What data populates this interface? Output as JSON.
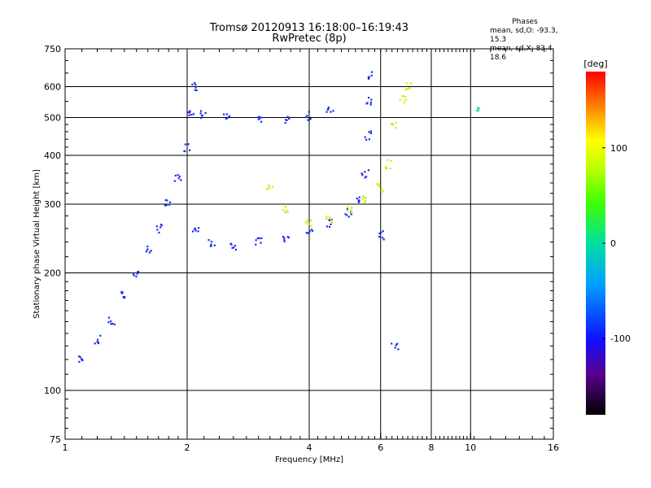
{
  "chart_data": {
    "type": "scatter",
    "title_line1": "Tromsø 20120913 16:18:00–16:19:43",
    "title_line2": "RwPretec (8p)",
    "xlabel": "Frequency [MHz]",
    "ylabel": "Stationary phase Virtual Height [km]",
    "x_scale": "log",
    "y_scale": "log",
    "xlim": [
      1,
      16
    ],
    "ylim": [
      75,
      750
    ],
    "x_ticks": [
      1,
      2,
      4,
      6,
      8,
      10,
      16
    ],
    "y_ticks": [
      75,
      100,
      200,
      300,
      400,
      500,
      600,
      750
    ],
    "x_gridlines": [
      2,
      4,
      6,
      8,
      10
    ],
    "y_gridlines": [
      100,
      200,
      300,
      400,
      500,
      600
    ],
    "grid": true,
    "colorbar": {
      "label": "[deg]",
      "range": [
        -180,
        180
      ],
      "ticks": [
        100,
        0,
        -100
      ]
    },
    "phase_stats": {
      "heading": "Phases",
      "line_o": "mean, sd,O: -93.3, 15.3",
      "line_x": "mean, sd,X: 83.4, 18.6"
    },
    "series": [
      {
        "name": "",
        "trace_description": "approximate trace points (frequency MHz, virtual height km, phase deg)",
        "points": [
          [
            1.1,
            120,
            -100
          ],
          [
            1.2,
            135,
            -100
          ],
          [
            1.3,
            150,
            -100
          ],
          [
            1.4,
            175,
            -100
          ],
          [
            1.5,
            200,
            -100
          ],
          [
            1.6,
            230,
            -100
          ],
          [
            1.7,
            260,
            -100
          ],
          [
            1.8,
            300,
            -100
          ],
          [
            1.9,
            350,
            -100
          ],
          [
            2.0,
            420,
            -100
          ],
          [
            2.05,
            520,
            -100
          ],
          [
            2.1,
            600,
            -100
          ],
          [
            2.2,
            510,
            -100
          ],
          [
            2.5,
            500,
            -100
          ],
          [
            3.0,
            490,
            -100
          ],
          [
            3.5,
            495,
            -100
          ],
          [
            4.0,
            505,
            -100
          ],
          [
            4.5,
            520,
            -100
          ],
          [
            2.1,
            260,
            -100
          ],
          [
            2.3,
            240,
            -100
          ],
          [
            2.6,
            235,
            -100
          ],
          [
            3.0,
            240,
            -100
          ],
          [
            3.5,
            245,
            -100
          ],
          [
            4.0,
            255,
            -100
          ],
          [
            4.5,
            268,
            -100
          ],
          [
            5.0,
            285,
            -100
          ],
          [
            5.3,
            310,
            -100
          ],
          [
            5.5,
            360,
            -100
          ],
          [
            5.6,
            450,
            -100
          ],
          [
            5.65,
            550,
            -100
          ],
          [
            5.7,
            640,
            -100
          ],
          [
            3.2,
            330,
            80
          ],
          [
            3.5,
            290,
            80
          ],
          [
            4.0,
            270,
            80
          ],
          [
            4.5,
            275,
            80
          ],
          [
            5.0,
            290,
            80
          ],
          [
            5.5,
            310,
            80
          ],
          [
            6.0,
            330,
            80
          ],
          [
            6.3,
            380,
            80
          ],
          [
            6.5,
            480,
            80
          ],
          [
            6.8,
            560,
            80
          ],
          [
            7.0,
            600,
            80
          ],
          [
            6.0,
            250,
            -100
          ],
          [
            6.5,
            130,
            -100
          ],
          [
            10.5,
            530,
            0
          ]
        ]
      }
    ]
  }
}
